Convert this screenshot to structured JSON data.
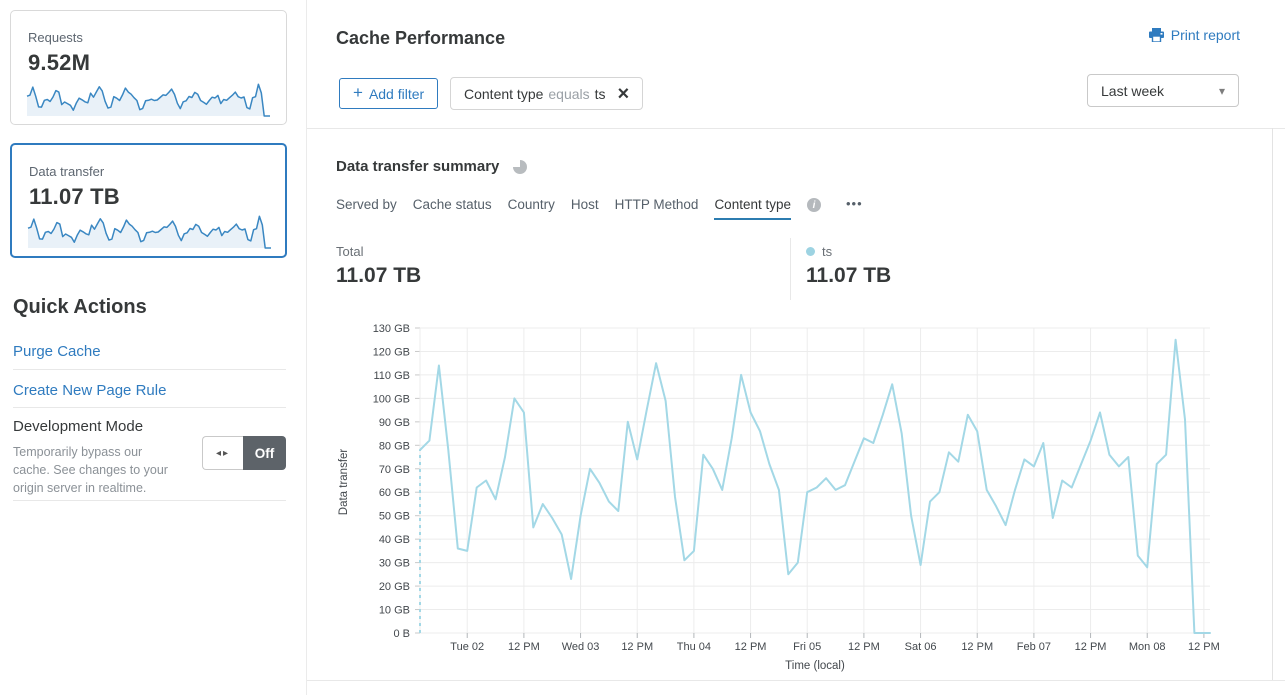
{
  "sidebar": {
    "cards": [
      {
        "label": "Requests",
        "value": "9.52M",
        "selected": false
      },
      {
        "label": "Data transfer",
        "value": "11.07 TB",
        "selected": true
      }
    ],
    "quick_actions": {
      "title": "Quick Actions",
      "links": [
        "Purge Cache",
        "Create New Page Rule"
      ],
      "dev_mode": {
        "label": "Development Mode",
        "description": "Temporarily bypass our cache. See changes to your origin server in realtime.",
        "toggle_state": "Off"
      }
    }
  },
  "header": {
    "title": "Cache Performance",
    "print_label": "Print report",
    "add_filter_label": "Add filter",
    "filter_chip": {
      "field": "Content type",
      "operator": "equals",
      "value": "ts"
    },
    "time_range": "Last week"
  },
  "summary": {
    "title": "Data transfer summary",
    "tabs": [
      "Served by",
      "Cache status",
      "Country",
      "Host",
      "HTTP Method",
      "Content type"
    ],
    "active_tab": "Content type",
    "more_label": "•••",
    "total_label": "Total",
    "total_value": "11.07 TB",
    "legend": {
      "name": "ts",
      "value": "11.07 TB",
      "color": "#9dd3e2"
    }
  },
  "chart_data": {
    "type": "line",
    "title": "Data transfer summary",
    "xlabel": "Time (local)",
    "ylabel": "Data transfer",
    "unit": "GB",
    "ylim": [
      0,
      130
    ],
    "grid": true,
    "y_ticks": [
      "130 GB",
      "120 GB",
      "110 GB",
      "100 GB",
      "90 GB",
      "80 GB",
      "70 GB",
      "60 GB",
      "50 GB",
      "40 GB",
      "30 GB",
      "20 GB",
      "10 GB",
      "0 B"
    ],
    "x_ticks": [
      "Tue 02",
      "12 PM",
      "Wed 03",
      "12 PM",
      "Thu 04",
      "12 PM",
      "Fri 05",
      "12 PM",
      "Sat 06",
      "12 PM",
      "Feb 07",
      "12 PM",
      "Mon 08",
      "12 PM"
    ],
    "x_tick_first_index": 5,
    "x_tick_step": 6,
    "interval_hours": 2,
    "start_dashed": true,
    "series": [
      {
        "name": "ts",
        "color": "#a3d8e6",
        "values": [
          78,
          82,
          114,
          78,
          36,
          35,
          62,
          65,
          57,
          75,
          100,
          94,
          45,
          55,
          49,
          42,
          23,
          50,
          70,
          64,
          56,
          52,
          90,
          74,
          95,
          115,
          99,
          58,
          31,
          35,
          76,
          70,
          61,
          83,
          110,
          94,
          86,
          72,
          61,
          25,
          30,
          60,
          62,
          66,
          61,
          63,
          73,
          83,
          81,
          93,
          106,
          85,
          50,
          29,
          56,
          60,
          77,
          73,
          93,
          86,
          61,
          54,
          46,
          61,
          74,
          71,
          81,
          49,
          65,
          62,
          72,
          82,
          94,
          76,
          71,
          75,
          33,
          28,
          72,
          76,
          125,
          91,
          0,
          0
        ]
      }
    ]
  },
  "icons": {
    "plus": "+",
    "close": "×",
    "caret_down": "▾",
    "toggle_arrows": "◂▸",
    "info": "i",
    "printer": "printer-glyph"
  },
  "colors": {
    "accent_blue": "#2f7bbf",
    "tab_underline": "#2c7cb0",
    "chart_line": "#a3d8e6",
    "legend_dot": "#9dd3e2",
    "spark_line": "#3a87c2",
    "spark_fill": "#e9f1f8",
    "toggle_off_bg": "#5d6369"
  }
}
